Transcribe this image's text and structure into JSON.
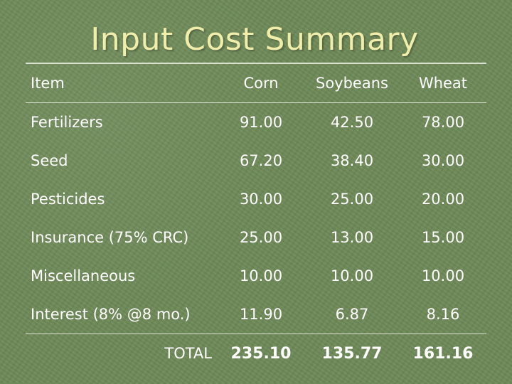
{
  "slide": {
    "title": "Input Cost Summary"
  },
  "table": {
    "headers": [
      "Item",
      "Corn",
      "Soybeans",
      "Wheat"
    ],
    "rows": [
      {
        "item": "Fertilizers",
        "corn": "91.00",
        "soybeans": "42.50",
        "wheat": "78.00"
      },
      {
        "item": "Seed",
        "corn": "67.20",
        "soybeans": "38.40",
        "wheat": "30.00"
      },
      {
        "item": "Pesticides",
        "corn": "30.00",
        "soybeans": "25.00",
        "wheat": "20.00"
      },
      {
        "item": "Insurance (75% CRC)",
        "corn": "25.00",
        "soybeans": "13.00",
        "wheat": "15.00"
      },
      {
        "item": "Miscellaneous",
        "corn": "10.00",
        "soybeans": "10.00",
        "wheat": "10.00"
      },
      {
        "item": "Interest (8% @8 mo.)",
        "corn": "11.90",
        "soybeans": "6.87",
        "wheat": "8.16"
      }
    ],
    "total": {
      "label": "TOTAL",
      "corn": "235.10",
      "soybeans": "135.77",
      "wheat": "161.16"
    }
  },
  "colors": {
    "background": "#6e8a58",
    "title": "#f1eeab",
    "text": "#ffffff",
    "rule": "#d9e3cf"
  }
}
